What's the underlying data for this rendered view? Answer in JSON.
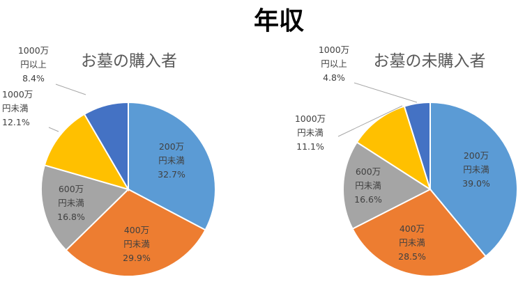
{
  "main_title": "年収",
  "chart_data": [
    {
      "type": "pie",
      "title": "お墓の購入者",
      "slices": [
        {
          "label": "200万円未満",
          "value": 32.7,
          "value_text": "32.7%",
          "color": "#5b9bd5"
        },
        {
          "label": "400万円未満",
          "value": 29.9,
          "value_text": "29.9%",
          "color": "#ed7d31"
        },
        {
          "label": "600万円未満",
          "value": 16.8,
          "value_text": "16.8%",
          "color": "#a5a5a5"
        },
        {
          "label": "1000万円未満",
          "value": 12.1,
          "value_text": "12.1%",
          "color": "#ffc000"
        },
        {
          "label": "1000万円以上",
          "value": 8.4,
          "value_text": "8.4%",
          "color": "#4472c4"
        }
      ]
    },
    {
      "type": "pie",
      "title": "お墓の未購入者",
      "slices": [
        {
          "label": "200万円未満",
          "value": 39.0,
          "value_text": "39.0%",
          "color": "#5b9bd5"
        },
        {
          "label": "400万円未満",
          "value": 28.5,
          "value_text": "28.5%",
          "color": "#ed7d31"
        },
        {
          "label": "600万円未満",
          "value": 16.6,
          "value_text": "16.6%",
          "color": "#a5a5a5"
        },
        {
          "label": "1000万円未満",
          "value": 11.1,
          "value_text": "11.1%",
          "color": "#ffc000"
        },
        {
          "label": "1000万円以上",
          "value": 4.8,
          "value_text": "4.8%",
          "color": "#4472c4"
        }
      ]
    }
  ]
}
